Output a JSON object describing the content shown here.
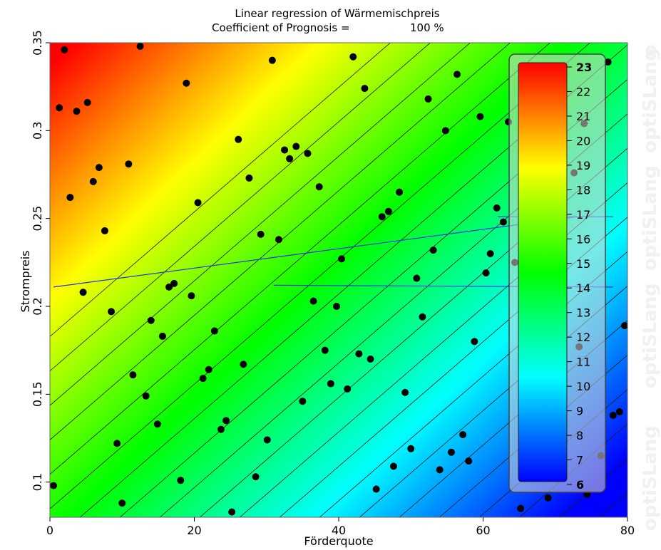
{
  "chart_data": {
    "type": "scatter",
    "title": "Linear regression of Wärmemischpreis",
    "subtitle_label": "Coefficient of Prognosis =",
    "subtitle_value": "100 %",
    "xlabel": "Förderquote",
    "ylabel": "Strompreis",
    "xlim": [
      0,
      80
    ],
    "ylim": [
      0.08,
      0.35
    ],
    "xticks": [
      0,
      20,
      40,
      60,
      80
    ],
    "yticks": [
      0.1,
      0.15,
      0.2,
      0.25,
      0.3,
      0.35
    ],
    "ytick_labels": [
      "0.1",
      "0.15",
      "0.2",
      "0.25",
      "0.3",
      "0.35"
    ],
    "grid": false,
    "background": "linear regression surface colored by Wärmemischpreis with iso-lines",
    "colorbar": {
      "min": 6,
      "max": 23,
      "ticks": [
        "23",
        "22",
        "21",
        "20",
        "19",
        "18",
        "17",
        "16",
        "15",
        "14",
        "13",
        "12",
        "11",
        "10",
        "9",
        "8",
        "7",
        "6"
      ],
      "colors": [
        "#0000ff",
        "#00ffff",
        "#00ff00",
        "#ffff00",
        "#ff0000"
      ]
    },
    "watermark": [
      "optiSLang",
      "optiSLang",
      "optiSLang",
      "optiSLang",
      "o"
    ],
    "points": [
      {
        "x": 0.5,
        "y": 0.098
      },
      {
        "x": 2,
        "y": 0.346
      },
      {
        "x": 1.3,
        "y": 0.313
      },
      {
        "x": 3.7,
        "y": 0.311
      },
      {
        "x": 5.2,
        "y": 0.316
      },
      {
        "x": 2.8,
        "y": 0.262
      },
      {
        "x": 6,
        "y": 0.271
      },
      {
        "x": 6.8,
        "y": 0.279
      },
      {
        "x": 7.6,
        "y": 0.243
      },
      {
        "x": 4.6,
        "y": 0.208
      },
      {
        "x": 8.5,
        "y": 0.197
      },
      {
        "x": 9.3,
        "y": 0.122
      },
      {
        "x": 10,
        "y": 0.088
      },
      {
        "x": 10.9,
        "y": 0.281
      },
      {
        "x": 11.5,
        "y": 0.161
      },
      {
        "x": 12.5,
        "y": 0.348
      },
      {
        "x": 13.3,
        "y": 0.149
      },
      {
        "x": 14,
        "y": 0.192
      },
      {
        "x": 14.9,
        "y": 0.133
      },
      {
        "x": 15.6,
        "y": 0.183
      },
      {
        "x": 16.5,
        "y": 0.211
      },
      {
        "x": 17.2,
        "y": 0.213
      },
      {
        "x": 18.1,
        "y": 0.101
      },
      {
        "x": 18.9,
        "y": 0.327
      },
      {
        "x": 19.6,
        "y": 0.206
      },
      {
        "x": 20.5,
        "y": 0.259
      },
      {
        "x": 21.2,
        "y": 0.159
      },
      {
        "x": 22,
        "y": 0.164
      },
      {
        "x": 22.8,
        "y": 0.186
      },
      {
        "x": 23.7,
        "y": 0.13
      },
      {
        "x": 24.4,
        "y": 0.135
      },
      {
        "x": 25.2,
        "y": 0.083
      },
      {
        "x": 26.1,
        "y": 0.295
      },
      {
        "x": 26.8,
        "y": 0.167
      },
      {
        "x": 27.6,
        "y": 0.273
      },
      {
        "x": 28.5,
        "y": 0.103
      },
      {
        "x": 29.2,
        "y": 0.241
      },
      {
        "x": 30.1,
        "y": 0.124
      },
      {
        "x": 30.8,
        "y": 0.34
      },
      {
        "x": 31.7,
        "y": 0.238
      },
      {
        "x": 32.5,
        "y": 0.289
      },
      {
        "x": 33.2,
        "y": 0.284
      },
      {
        "x": 34.1,
        "y": 0.291
      },
      {
        "x": 35.0,
        "y": 0.146
      },
      {
        "x": 35.7,
        "y": 0.287
      },
      {
        "x": 36.5,
        "y": 0.203
      },
      {
        "x": 37.3,
        "y": 0.268
      },
      {
        "x": 38.1,
        "y": 0.175
      },
      {
        "x": 38.9,
        "y": 0.156
      },
      {
        "x": 39.7,
        "y": 0.2
      },
      {
        "x": 40.4,
        "y": 0.227
      },
      {
        "x": 41.2,
        "y": 0.153
      },
      {
        "x": 42,
        "y": 0.342
      },
      {
        "x": 42.8,
        "y": 0.173
      },
      {
        "x": 43.6,
        "y": 0.324
      },
      {
        "x": 44.4,
        "y": 0.17
      },
      {
        "x": 45.2,
        "y": 0.096
      },
      {
        "x": 46,
        "y": 0.251
      },
      {
        "x": 46.9,
        "y": 0.254
      },
      {
        "x": 47.6,
        "y": 0.109
      },
      {
        "x": 48.4,
        "y": 0.265
      },
      {
        "x": 49.2,
        "y": 0.151
      },
      {
        "x": 50,
        "y": 0.119
      },
      {
        "x": 50.8,
        "y": 0.216
      },
      {
        "x": 51.6,
        "y": 0.194
      },
      {
        "x": 52.4,
        "y": 0.318
      },
      {
        "x": 53.1,
        "y": 0.232
      },
      {
        "x": 54,
        "y": 0.107
      },
      {
        "x": 54.8,
        "y": 0.3
      },
      {
        "x": 55.6,
        "y": 0.117
      },
      {
        "x": 56.4,
        "y": 0.332
      },
      {
        "x": 57.2,
        "y": 0.127
      },
      {
        "x": 58,
        "y": 0.112
      },
      {
        "x": 58.8,
        "y": 0.18
      },
      {
        "x": 59.6,
        "y": 0.308
      },
      {
        "x": 60.4,
        "y": 0.219
      },
      {
        "x": 61,
        "y": 0.23
      },
      {
        "x": 61.9,
        "y": 0.256
      },
      {
        "x": 62.8,
        "y": 0.248
      },
      {
        "x": 63.5,
        "y": 0.305
      },
      {
        "x": 64.4,
        "y": 0.225
      },
      {
        "x": 65.2,
        "y": 0.085
      },
      {
        "x": 69,
        "y": 0.091
      },
      {
        "x": 72.6,
        "y": 0.276
      },
      {
        "x": 73.3,
        "y": 0.177
      },
      {
        "x": 74,
        "y": 0.304
      },
      {
        "x": 76.3,
        "y": 0.115
      },
      {
        "x": 77.3,
        "y": 0.339
      },
      {
        "x": 74.4,
        "y": 0.093
      },
      {
        "x": 78,
        "y": 0.138
      },
      {
        "x": 78.9,
        "y": 0.14
      },
      {
        "x": 79.6,
        "y": 0.189
      }
    ],
    "annotations": [
      {
        "kind": "line",
        "x1": 0.5,
        "y1": 0.211,
        "x2": 73,
        "y2": 0.251
      },
      {
        "kind": "line",
        "x1": 62,
        "y1": 0.251,
        "x2": 78,
        "y2": 0.251
      },
      {
        "kind": "line",
        "x1": 31,
        "y1": 0.212,
        "x2": 78,
        "y2": 0.211
      }
    ]
  }
}
